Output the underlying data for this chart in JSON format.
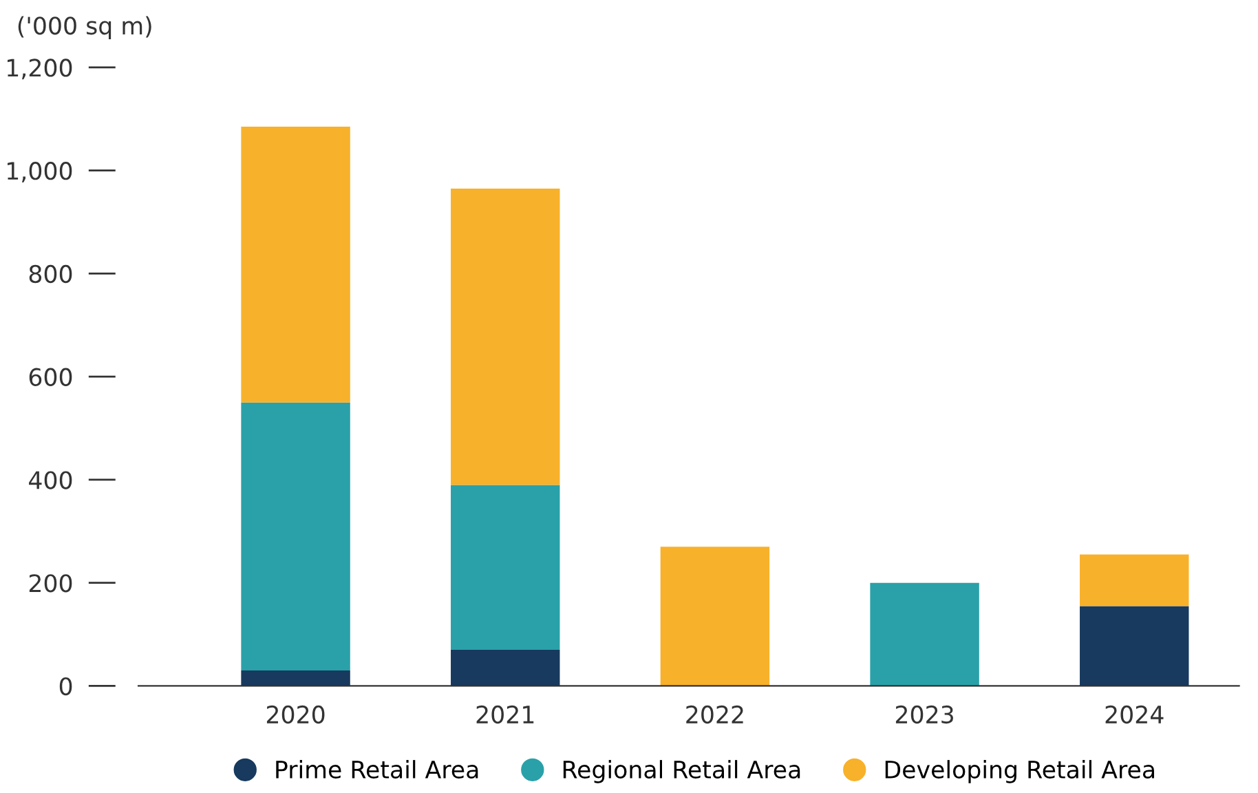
{
  "chart_data": {
    "type": "bar",
    "stacked": true,
    "ylabel": "('000 sq m)",
    "categories": [
      "2020",
      "2021",
      "2022",
      "2023",
      "2024"
    ],
    "series": [
      {
        "name": "Prime Retail Area",
        "color": "#173a5e",
        "values": [
          30,
          70,
          0,
          0,
          155
        ]
      },
      {
        "name": "Regional Retail Area",
        "color": "#2aa1a8",
        "values": [
          520,
          320,
          0,
          200,
          0
        ]
      },
      {
        "name": "Developing Retail Area",
        "color": "#f8b12a",
        "values": [
          535,
          575,
          270,
          0,
          100
        ]
      }
    ],
    "ylim": [
      0,
      1200
    ],
    "yticks": [
      0,
      200,
      400,
      600,
      800,
      {
        "value": 1000,
        "label": "1,000"
      },
      {
        "value": 1200,
        "label": "1,200"
      }
    ],
    "grid": false,
    "legend": "bottom"
  }
}
